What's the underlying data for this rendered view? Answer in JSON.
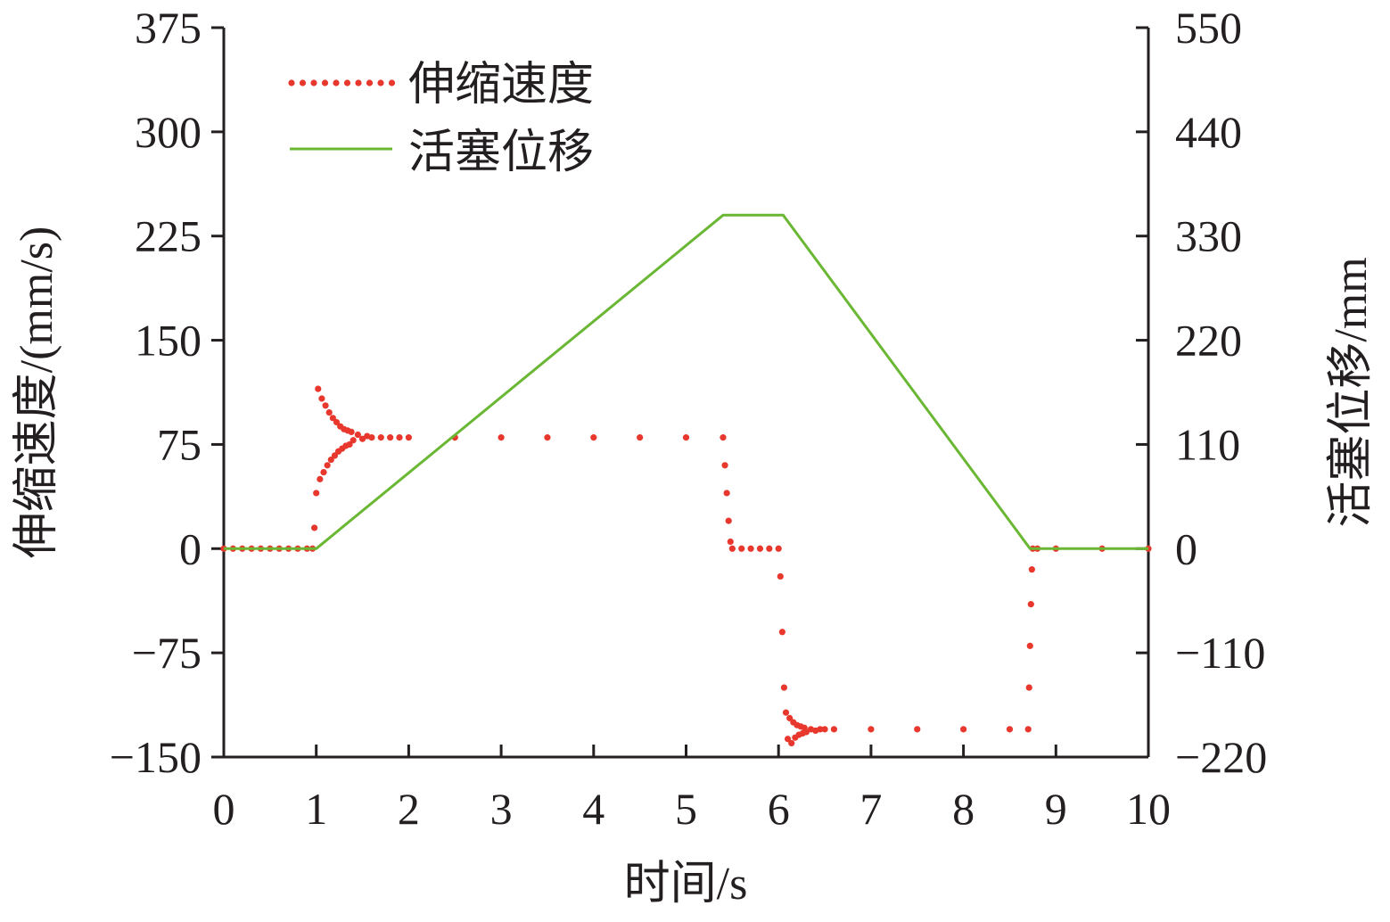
{
  "chart_data": {
    "type": "line",
    "xlabel": "时间/s",
    "ylabel_left": "伸缩速度/(mm/s)",
    "ylabel_right": "活塞位移/mm",
    "xlim": [
      0,
      10
    ],
    "ylim_left": [
      -150,
      375
    ],
    "ylim_right": [
      -220,
      550
    ],
    "x_ticks": [
      "0",
      "1",
      "2",
      "3",
      "4",
      "5",
      "6",
      "7",
      "8",
      "9",
      "10"
    ],
    "y_left_ticks": [
      "375",
      "300",
      "225",
      "150",
      "75",
      "0",
      "−75",
      "−150"
    ],
    "y_right_ticks": [
      "550",
      "440",
      "330",
      "220",
      "110",
      "0",
      "−110",
      "−220"
    ],
    "legend_position": "top-left",
    "grid": false,
    "series": [
      {
        "name": "伸缩速度",
        "axis": "left",
        "style": "dotted",
        "color": "#e8382e",
        "x": [
          0.0,
          0.1,
          0.2,
          0.3,
          0.4,
          0.5,
          0.6,
          0.7,
          0.8,
          0.9,
          0.96,
          0.98,
          1.0,
          1.02,
          1.04,
          1.06,
          1.08,
          1.1,
          1.12,
          1.14,
          1.16,
          1.18,
          1.2,
          1.22,
          1.24,
          1.26,
          1.28,
          1.3,
          1.32,
          1.34,
          1.36,
          1.38,
          1.4,
          1.45,
          1.5,
          1.55,
          1.6,
          1.7,
          1.8,
          1.9,
          2.0,
          2.5,
          3.0,
          3.5,
          4.0,
          4.5,
          5.0,
          5.4,
          5.42,
          5.44,
          5.46,
          5.48,
          5.5,
          5.6,
          5.7,
          5.8,
          5.9,
          6.0,
          6.02,
          6.04,
          6.06,
          6.08,
          6.1,
          6.12,
          6.14,
          6.16,
          6.18,
          6.2,
          6.22,
          6.24,
          6.26,
          6.28,
          6.3,
          6.35,
          6.4,
          6.45,
          6.5,
          6.6,
          7.0,
          7.5,
          8.0,
          8.5,
          8.7,
          8.71,
          8.72,
          8.73,
          8.74,
          8.75,
          8.8,
          9.0,
          9.5,
          10.0
        ],
        "y": [
          0,
          0,
          0,
          0,
          0,
          0,
          0,
          0,
          0,
          0,
          0,
          15,
          40,
          115,
          50,
          108,
          55,
          103,
          60,
          98,
          64,
          94,
          67,
          91,
          70,
          88,
          72,
          86,
          74,
          85,
          75,
          84,
          78,
          82,
          79,
          81,
          80,
          80,
          80,
          80,
          80,
          80,
          80,
          80,
          80,
          80,
          80,
          80,
          60,
          40,
          20,
          5,
          0,
          0,
          0,
          0,
          0,
          0,
          -20,
          -60,
          -100,
          -118,
          -137,
          -122,
          -140,
          -125,
          -136,
          -127,
          -134,
          -128,
          -133,
          -129,
          -132,
          -130,
          -131,
          -130,
          -130,
          -130,
          -130,
          -130,
          -130,
          -130,
          -130,
          -100,
          -70,
          -40,
          -15,
          0,
          0,
          0,
          0,
          0
        ]
      },
      {
        "name": "活塞位移",
        "axis": "right",
        "style": "solid",
        "color": "#6ab734",
        "x": [
          0,
          1.0,
          5.4,
          6.05,
          8.72,
          10
        ],
        "y": [
          0,
          0,
          352,
          352,
          0,
          0
        ]
      }
    ]
  }
}
